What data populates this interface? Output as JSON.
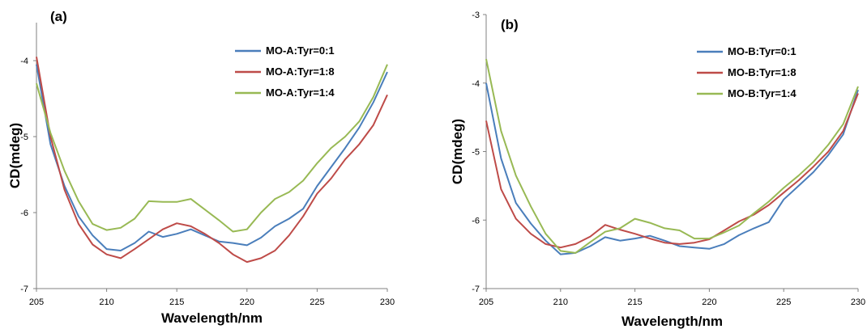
{
  "chart_data": [
    {
      "type": "line",
      "panel_label": "(a)",
      "xlabel": "Wavelength/nm",
      "ylabel": "CD(mdeg)",
      "xlim": [
        205,
        230
      ],
      "ylim": [
        -7,
        -3.5
      ],
      "xticks": [
        205,
        210,
        215,
        220,
        225,
        230
      ],
      "yticks": [
        -7,
        -6,
        -5,
        -4
      ],
      "grid": false,
      "legend_position": "top-right",
      "x": [
        205,
        206,
        207,
        208,
        209,
        210,
        211,
        212,
        213,
        214,
        215,
        216,
        217,
        218,
        219,
        220,
        221,
        222,
        223,
        224,
        225,
        226,
        227,
        228,
        229,
        230
      ],
      "series": [
        {
          "name": "MO-A:Tyr=0:1",
          "color": "#4a7ebb",
          "values": [
            -4.05,
            -5.1,
            -5.65,
            -6.05,
            -6.3,
            -6.48,
            -6.5,
            -6.4,
            -6.25,
            -6.32,
            -6.28,
            -6.22,
            -6.3,
            -6.38,
            -6.4,
            -6.43,
            -6.33,
            -6.18,
            -6.08,
            -5.95,
            -5.65,
            -5.4,
            -5.15,
            -4.88,
            -4.55,
            -4.15
          ]
        },
        {
          "name": "MO-A:Tyr=1:8",
          "color": "#be4b48",
          "values": [
            -3.95,
            -5.0,
            -5.7,
            -6.15,
            -6.42,
            -6.55,
            -6.6,
            -6.48,
            -6.35,
            -6.22,
            -6.14,
            -6.18,
            -6.28,
            -6.4,
            -6.55,
            -6.65,
            -6.6,
            -6.5,
            -6.3,
            -6.05,
            -5.75,
            -5.55,
            -5.3,
            -5.1,
            -4.85,
            -4.45
          ]
        },
        {
          "name": "MO-A:Tyr=1:4",
          "color": "#98b954",
          "values": [
            -4.3,
            -4.95,
            -5.45,
            -5.85,
            -6.15,
            -6.23,
            -6.2,
            -6.08,
            -5.85,
            -5.86,
            -5.86,
            -5.82,
            -5.96,
            -6.1,
            -6.25,
            -6.22,
            -6.0,
            -5.82,
            -5.73,
            -5.58,
            -5.35,
            -5.15,
            -5.0,
            -4.8,
            -4.48,
            -4.05
          ]
        }
      ]
    },
    {
      "type": "line",
      "panel_label": "(b)",
      "xlabel": "Wavelength/nm",
      "ylabel": "CD(mdeg)",
      "xlim": [
        205,
        230
      ],
      "ylim": [
        -7,
        -3
      ],
      "xticks": [
        205,
        210,
        215,
        220,
        225,
        230
      ],
      "yticks": [
        -7,
        -6,
        -5,
        -4,
        -3
      ],
      "grid": false,
      "legend_position": "top-right",
      "x": [
        205,
        206,
        207,
        208,
        209,
        210,
        211,
        212,
        213,
        214,
        215,
        216,
        217,
        218,
        219,
        220,
        221,
        222,
        223,
        224,
        225,
        226,
        227,
        228,
        229,
        230
      ],
      "series": [
        {
          "name": "MO-B:Tyr=0:1",
          "color": "#4a7ebb",
          "values": [
            -4.0,
            -5.1,
            -5.75,
            -6.05,
            -6.3,
            -6.5,
            -6.48,
            -6.38,
            -6.25,
            -6.3,
            -6.27,
            -6.23,
            -6.3,
            -6.38,
            -6.4,
            -6.42,
            -6.35,
            -6.22,
            -6.12,
            -6.03,
            -5.7,
            -5.5,
            -5.3,
            -5.05,
            -4.75,
            -4.1
          ]
        },
        {
          "name": "MO-B:Tyr=1:8",
          "color": "#be4b48",
          "values": [
            -4.55,
            -5.55,
            -5.98,
            -6.2,
            -6.35,
            -6.4,
            -6.35,
            -6.24,
            -6.07,
            -6.14,
            -6.2,
            -6.27,
            -6.33,
            -6.35,
            -6.33,
            -6.28,
            -6.15,
            -6.02,
            -5.92,
            -5.78,
            -5.6,
            -5.42,
            -5.22,
            -5.0,
            -4.7,
            -4.15
          ]
        },
        {
          "name": "MO-B:Tyr=1:4",
          "color": "#98b954",
          "values": [
            -3.65,
            -4.7,
            -5.35,
            -5.8,
            -6.2,
            -6.45,
            -6.48,
            -6.32,
            -6.17,
            -6.12,
            -5.98,
            -6.04,
            -6.12,
            -6.15,
            -6.27,
            -6.27,
            -6.18,
            -6.08,
            -5.9,
            -5.73,
            -5.53,
            -5.35,
            -5.15,
            -4.9,
            -4.6,
            -4.05
          ]
        }
      ]
    }
  ]
}
